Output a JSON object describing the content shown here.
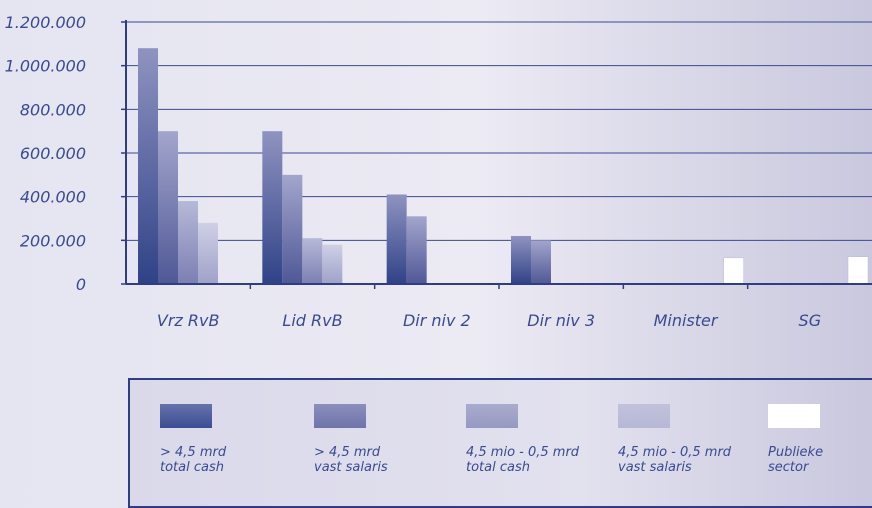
{
  "chart_data": {
    "type": "bar",
    "categories": [
      "Vrz RvB",
      "Lid RvB",
      "Dir niv 2",
      "Dir niv 3",
      "Minister",
      "SG"
    ],
    "y_tick_labels": [
      "0",
      "200.000",
      "400.000",
      "600.000",
      "800.000",
      "1.000.000",
      "1.200.000"
    ],
    "ylim": [
      0,
      1200000
    ],
    "grid": true,
    "series": [
      {
        "name": "> 4,5 mrd\ntotal cash",
        "color": "#3b4d93",
        "values": [
          1080000,
          700000,
          410000,
          220000,
          null,
          null
        ]
      },
      {
        "name": "> 4,5 mrd\nvast salaris",
        "color": "#6e73aa",
        "values": [
          700000,
          500000,
          310000,
          200000,
          null,
          null
        ]
      },
      {
        "name": "4,5 mio - 0,5 mrd\ntotal cash",
        "color": "#9699c1",
        "values": [
          380000,
          210000,
          null,
          null,
          null,
          null
        ]
      },
      {
        "name": "4,5 mio - 0,5 mrd\nvast salaris",
        "color": "#b7b8d6",
        "values": [
          280000,
          180000,
          null,
          null,
          null,
          null
        ]
      },
      {
        "name": "Publieke\nsector",
        "color": "#ffffff",
        "values": [
          null,
          null,
          null,
          null,
          120000,
          125000
        ]
      }
    ],
    "legend_position": "bottom"
  }
}
